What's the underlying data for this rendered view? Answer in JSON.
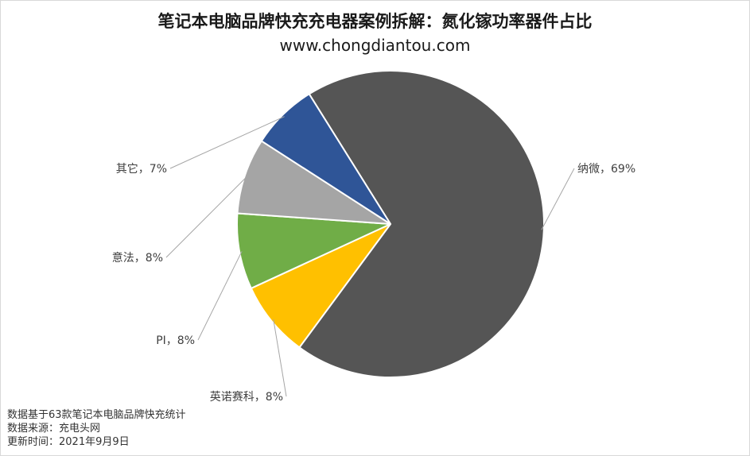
{
  "chart_data": {
    "type": "pie",
    "title": "笔记本电脑品牌快充充电器案例拆解：氮化镓功率器件占比",
    "subtitle": "www.chongdiantou.com",
    "slices": [
      {
        "name": "纳微",
        "value": 69,
        "label": "纳微，69%",
        "color": "#555555"
      },
      {
        "name": "英诺赛科",
        "value": 8,
        "label": "英诺赛科，8%",
        "color": "#ffc000"
      },
      {
        "name": "PI",
        "value": 8,
        "label": "PI，8%",
        "color": "#70ad47"
      },
      {
        "name": "意法",
        "value": 8,
        "label": "意法，8%",
        "color": "#a5a5a5"
      },
      {
        "name": "其它",
        "value": 7,
        "label": "其它，7%",
        "color": "#2f5597"
      }
    ],
    "legend": "none"
  },
  "footnotes": {
    "basis": "数据基于63款笔记本电脑品牌快充统计",
    "source": "数据来源：充电头网",
    "updated": "更新时间：2021年9月9日"
  }
}
